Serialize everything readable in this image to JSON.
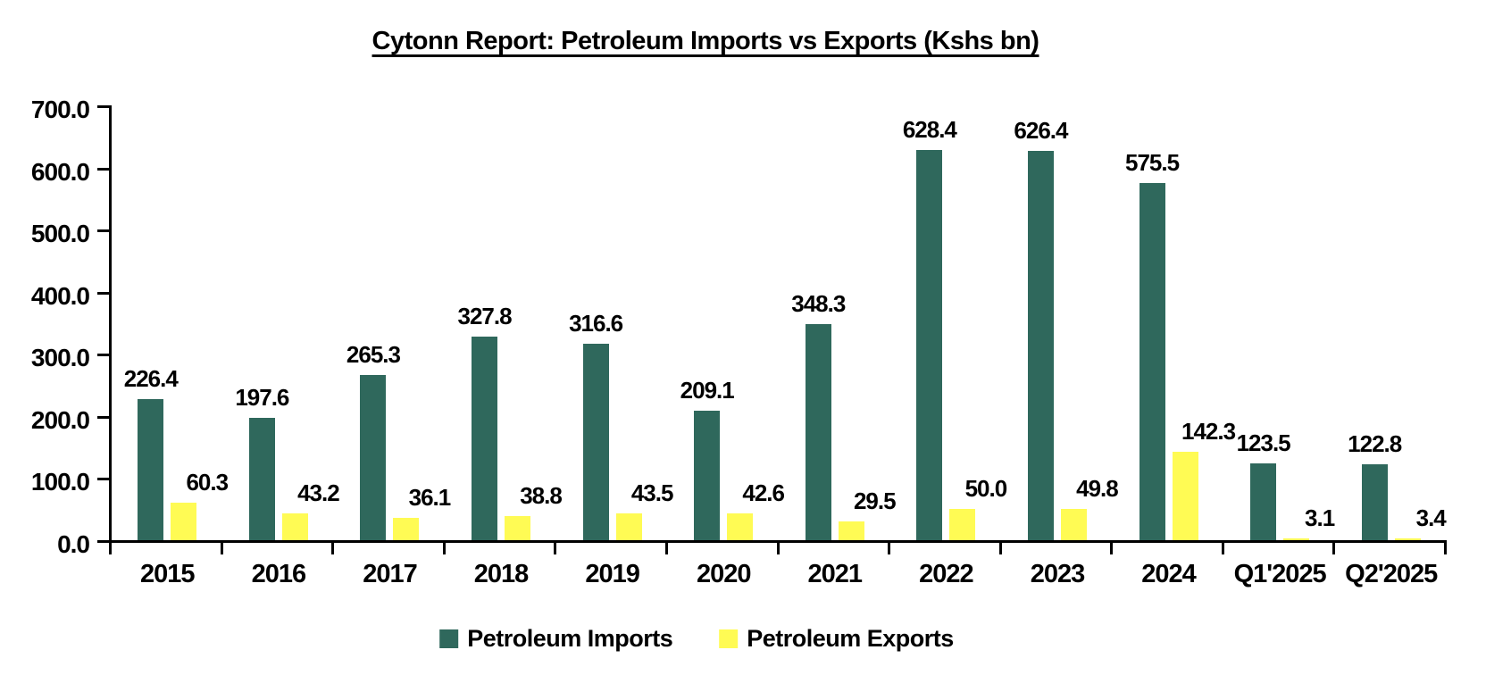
{
  "title": "Cytonn Report: Petroleum Imports vs Exports (Kshs bn)",
  "colors": {
    "imports": "#2F685C",
    "exports": "#FFFB54",
    "axis": "#000000",
    "text": "#000000",
    "background": "#FFFFFF"
  },
  "chart_data": {
    "type": "bar",
    "title": "Cytonn Report: Petroleum Imports vs Exports (Kshs bn)",
    "categories": [
      "2015",
      "2016",
      "2017",
      "2018",
      "2019",
      "2020",
      "2021",
      "2022",
      "2023",
      "2024",
      "Q1'2025",
      "Q2'2025"
    ],
    "series": [
      {
        "name": "Petroleum Imports",
        "color": "#2F685C",
        "values": [
          226.4,
          197.6,
          265.3,
          327.8,
          316.6,
          209.1,
          348.3,
          628.4,
          626.4,
          575.5,
          123.5,
          122.8
        ]
      },
      {
        "name": "Petroleum Exports",
        "color": "#FFFB54",
        "values": [
          60.3,
          43.2,
          36.1,
          38.8,
          43.5,
          42.6,
          29.5,
          50.0,
          49.8,
          142.3,
          3.1,
          3.4
        ]
      }
    ],
    "xlabel": "",
    "ylabel": "",
    "ylim": [
      0,
      700
    ],
    "ytick_values": [
      0,
      100,
      200,
      300,
      400,
      500,
      600,
      700
    ],
    "ytick_labels": [
      "0.0",
      "100.0",
      "200.0",
      "300.0",
      "400.0",
      "500.0",
      "600.0",
      "700.0"
    ],
    "grid": false,
    "value_labels": true,
    "value_label_decimals": 1,
    "legend_position": "bottom"
  },
  "legend": {
    "items": [
      {
        "label": "Petroleum Imports",
        "color": "#2F685C"
      },
      {
        "label": "Petroleum Exports",
        "color": "#FFFB54"
      }
    ]
  }
}
